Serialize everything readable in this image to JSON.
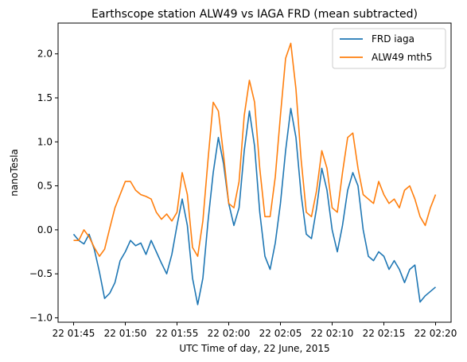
{
  "chart_data": {
    "type": "line",
    "title": "Earthscope station ALW49 vs IAGA FRD (mean subtracted)",
    "xlabel": "UTC Time of day, 22 June, 2015",
    "ylabel": "nanoTesla",
    "xlim": [
      "01:43:30",
      "02:21:30"
    ],
    "ylim": [
      -1.05,
      2.35
    ],
    "x_ticks": [
      "22 01:45",
      "22 01:50",
      "22 01:55",
      "22 02:00",
      "22 02:05",
      "22 02:10",
      "22 02:15",
      "22 02:20"
    ],
    "y_ticks": [
      "−1.0",
      "−0.5",
      "0.0",
      "0.5",
      "1.0",
      "1.5",
      "2.0"
    ],
    "grid": false,
    "legend_position": "upper right",
    "series": [
      {
        "name": "FRD iaga",
        "color": "#1f77b4",
        "points": [
          [
            "01:45:00",
            -0.05
          ],
          [
            "01:45:30",
            -0.12
          ],
          [
            "01:46:00",
            -0.16
          ],
          [
            "01:46:30",
            -0.05
          ],
          [
            "01:47:00",
            -0.22
          ],
          [
            "01:47:30",
            -0.48
          ],
          [
            "01:48:00",
            -0.78
          ],
          [
            "01:48:30",
            -0.72
          ],
          [
            "01:49:00",
            -0.6
          ],
          [
            "01:49:30",
            -0.35
          ],
          [
            "01:50:00",
            -0.25
          ],
          [
            "01:50:30",
            -0.12
          ],
          [
            "01:51:00",
            -0.18
          ],
          [
            "01:51:30",
            -0.15
          ],
          [
            "01:52:00",
            -0.28
          ],
          [
            "01:52:30",
            -0.12
          ],
          [
            "01:53:00",
            -0.25
          ],
          [
            "01:53:30",
            -0.38
          ],
          [
            "01:54:00",
            -0.5
          ],
          [
            "01:54:30",
            -0.28
          ],
          [
            "01:55:00",
            0.05
          ],
          [
            "01:55:30",
            0.35
          ],
          [
            "01:56:00",
            0.05
          ],
          [
            "01:56:30",
            -0.55
          ],
          [
            "01:57:00",
            -0.85
          ],
          [
            "01:57:30",
            -0.55
          ],
          [
            "01:58:00",
            0.1
          ],
          [
            "01:58:30",
            0.65
          ],
          [
            "01:59:00",
            1.05
          ],
          [
            "01:59:30",
            0.75
          ],
          [
            "02:00:00",
            0.3
          ],
          [
            "02:00:30",
            0.05
          ],
          [
            "02:01:00",
            0.25
          ],
          [
            "02:01:30",
            0.9
          ],
          [
            "02:02:00",
            1.35
          ],
          [
            "02:02:30",
            0.95
          ],
          [
            "02:03:00",
            0.2
          ],
          [
            "02:03:30",
            -0.3
          ],
          [
            "02:04:00",
            -0.45
          ],
          [
            "02:04:30",
            -0.15
          ],
          [
            "02:05:00",
            0.3
          ],
          [
            "02:05:30",
            0.9
          ],
          [
            "02:06:00",
            1.38
          ],
          [
            "02:06:30",
            1.05
          ],
          [
            "02:07:00",
            0.4
          ],
          [
            "02:07:30",
            -0.05
          ],
          [
            "02:08:00",
            -0.1
          ],
          [
            "02:08:30",
            0.25
          ],
          [
            "02:09:00",
            0.7
          ],
          [
            "02:09:30",
            0.45
          ],
          [
            "02:10:00",
            0.0
          ],
          [
            "02:10:30",
            -0.25
          ],
          [
            "02:11:00",
            0.05
          ],
          [
            "02:11:30",
            0.45
          ],
          [
            "02:12:00",
            0.65
          ],
          [
            "02:12:30",
            0.5
          ],
          [
            "02:13:00",
            0.0
          ],
          [
            "02:13:30",
            -0.3
          ],
          [
            "02:14:00",
            -0.35
          ],
          [
            "02:14:30",
            -0.25
          ],
          [
            "02:15:00",
            -0.3
          ],
          [
            "02:15:30",
            -0.45
          ],
          [
            "02:16:00",
            -0.35
          ],
          [
            "02:16:30",
            -0.45
          ],
          [
            "02:17:00",
            -0.6
          ],
          [
            "02:17:30",
            -0.45
          ],
          [
            "02:18:00",
            -0.4
          ],
          [
            "02:18:30",
            -0.82
          ],
          [
            "02:19:00",
            -0.75
          ],
          [
            "02:19:30",
            -0.7
          ],
          [
            "02:20:00",
            -0.65
          ]
        ]
      },
      {
        "name": "ALW49 mth5",
        "color": "#ff7f0e",
        "points": [
          [
            "01:45:00",
            -0.12
          ],
          [
            "01:45:30",
            -0.12
          ],
          [
            "01:46:00",
            0.0
          ],
          [
            "01:46:30",
            -0.08
          ],
          [
            "01:47:00",
            -0.2
          ],
          [
            "01:47:30",
            -0.3
          ],
          [
            "01:48:00",
            -0.22
          ],
          [
            "01:48:30",
            0.02
          ],
          [
            "01:49:00",
            0.25
          ],
          [
            "01:49:30",
            0.4
          ],
          [
            "01:50:00",
            0.55
          ],
          [
            "01:50:30",
            0.55
          ],
          [
            "01:51:00",
            0.45
          ],
          [
            "01:51:30",
            0.4
          ],
          [
            "01:52:00",
            0.38
          ],
          [
            "01:52:30",
            0.35
          ],
          [
            "01:53:00",
            0.2
          ],
          [
            "01:53:30",
            0.12
          ],
          [
            "01:54:00",
            0.18
          ],
          [
            "01:54:30",
            0.1
          ],
          [
            "01:55:00",
            0.2
          ],
          [
            "01:55:30",
            0.65
          ],
          [
            "01:56:00",
            0.4
          ],
          [
            "01:56:30",
            -0.2
          ],
          [
            "01:57:00",
            -0.3
          ],
          [
            "01:57:30",
            0.1
          ],
          [
            "01:58:00",
            0.8
          ],
          [
            "01:58:30",
            1.45
          ],
          [
            "01:59:00",
            1.35
          ],
          [
            "01:59:30",
            0.85
          ],
          [
            "02:00:00",
            0.3
          ],
          [
            "02:00:30",
            0.25
          ],
          [
            "02:01:00",
            0.55
          ],
          [
            "02:01:30",
            1.3
          ],
          [
            "02:02:00",
            1.7
          ],
          [
            "02:02:30",
            1.45
          ],
          [
            "02:03:00",
            0.7
          ],
          [
            "02:03:30",
            0.15
          ],
          [
            "02:04:00",
            0.15
          ],
          [
            "02:04:30",
            0.6
          ],
          [
            "02:05:00",
            1.3
          ],
          [
            "02:05:30",
            1.95
          ],
          [
            "02:06:00",
            2.12
          ],
          [
            "02:06:30",
            1.6
          ],
          [
            "02:07:00",
            0.8
          ],
          [
            "02:07:30",
            0.2
          ],
          [
            "02:08:00",
            0.15
          ],
          [
            "02:08:30",
            0.45
          ],
          [
            "02:09:00",
            0.9
          ],
          [
            "02:09:30",
            0.7
          ],
          [
            "02:10:00",
            0.25
          ],
          [
            "02:10:30",
            0.2
          ],
          [
            "02:11:00",
            0.65
          ],
          [
            "02:11:30",
            1.05
          ],
          [
            "02:12:00",
            1.1
          ],
          [
            "02:12:30",
            0.7
          ],
          [
            "02:13:00",
            0.4
          ],
          [
            "02:13:30",
            0.35
          ],
          [
            "02:14:00",
            0.3
          ],
          [
            "02:14:30",
            0.55
          ],
          [
            "02:15:00",
            0.4
          ],
          [
            "02:15:30",
            0.3
          ],
          [
            "02:16:00",
            0.35
          ],
          [
            "02:16:30",
            0.25
          ],
          [
            "02:17:00",
            0.45
          ],
          [
            "02:17:30",
            0.5
          ],
          [
            "02:18:00",
            0.35
          ],
          [
            "02:18:30",
            0.15
          ],
          [
            "02:19:00",
            0.05
          ],
          [
            "02:19:30",
            0.25
          ],
          [
            "02:20:00",
            0.4
          ]
        ]
      }
    ]
  }
}
